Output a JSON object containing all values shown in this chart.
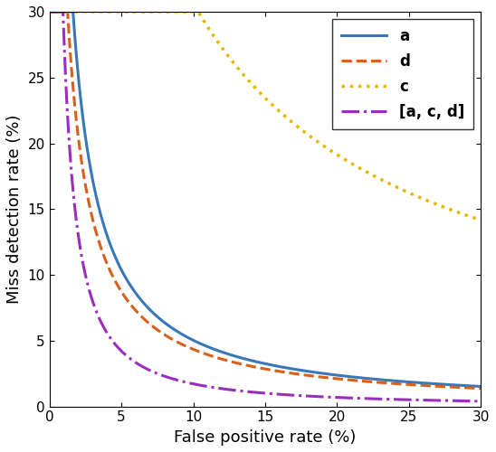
{
  "title": "",
  "xlabel": "False positive rate (%)",
  "ylabel": "Miss detection rate (%)",
  "xlim": [
    0,
    30
  ],
  "ylim": [
    0,
    30
  ],
  "xticks": [
    0,
    5,
    10,
    15,
    20,
    25,
    30
  ],
  "yticks": [
    0,
    5,
    10,
    15,
    20,
    25,
    30
  ],
  "curves": {
    "a": {
      "color": "#3878b8",
      "linestyle": "solid",
      "linewidth": 2.2,
      "label": "a",
      "A": 70.0,
      "k": 1.12,
      "x0": 0.5,
      "min_y": 0.0
    },
    "d": {
      "color": "#d95f1a",
      "linestyle": "dashed",
      "linewidth": 2.2,
      "label": "d",
      "A": 55.0,
      "k": 1.08,
      "x0": 0.5,
      "min_y": 0.0
    },
    "c": {
      "color": "#e8b800",
      "linestyle": "dotted",
      "linewidth": 2.5,
      "label": "c",
      "A": 280.0,
      "k": 0.85,
      "x0": 3.5,
      "min_y": 0.0
    },
    "acd": {
      "color": "#9a2dbe",
      "linestyle": "dashdot",
      "linewidth": 2.2,
      "label": "[a, c, d]",
      "A": 40.0,
      "k": 1.35,
      "x0": 0.3,
      "min_y": 0.0
    }
  },
  "legend_loc": "upper right",
  "legend_fontsize": 12,
  "axis_fontsize": 13,
  "tick_fontsize": 11,
  "figsize": [
    5.48,
    5.0
  ],
  "dpi": 100
}
